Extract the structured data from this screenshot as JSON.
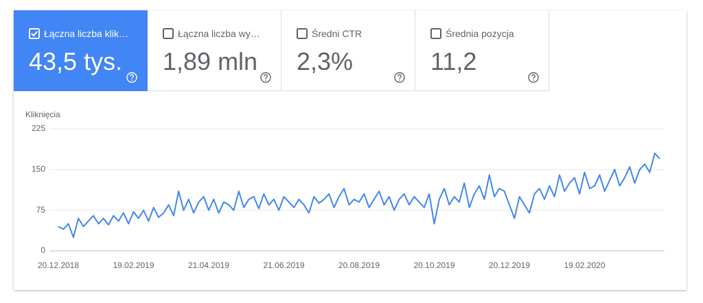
{
  "cards": [
    {
      "label": "Łączna liczba klik…",
      "value": "43,5 tys.",
      "selected": true
    },
    {
      "label": "Łączna liczba wy…",
      "value": "1,89 mln",
      "selected": false
    },
    {
      "label": "Średni CTR",
      "value": "2,3%",
      "selected": false
    },
    {
      "label": "Średnia pozycja",
      "value": "11,2",
      "selected": false
    }
  ],
  "chart_data": {
    "type": "line",
    "y_label": "Kliknięcia",
    "color": "#4285f4",
    "grid": true,
    "ylim": [
      0,
      225
    ],
    "yticks": [
      0,
      75,
      150,
      225
    ],
    "categories": [
      "20.12.2018",
      null,
      null,
      null,
      null,
      null,
      null,
      null,
      null,
      null,
      null,
      null,
      null,
      null,
      null,
      "19.02.2019",
      null,
      null,
      null,
      null,
      null,
      null,
      null,
      null,
      null,
      null,
      null,
      null,
      null,
      null,
      "21.04.2019",
      null,
      null,
      null,
      null,
      null,
      null,
      null,
      null,
      null,
      null,
      null,
      null,
      null,
      null,
      "21.06.2019",
      null,
      null,
      null,
      null,
      null,
      null,
      null,
      null,
      null,
      null,
      null,
      null,
      null,
      null,
      "20.08.2019",
      null,
      null,
      null,
      null,
      null,
      null,
      null,
      null,
      null,
      null,
      null,
      null,
      null,
      null,
      "20.10.2019",
      null,
      null,
      null,
      null,
      null,
      null,
      null,
      null,
      null,
      null,
      null,
      null,
      null,
      null,
      "20.12.2019",
      null,
      null,
      null,
      null,
      null,
      null,
      null,
      null,
      null,
      null,
      null,
      null,
      null,
      null,
      "19.02.2020",
      null,
      null,
      null,
      null,
      null,
      null,
      null,
      null,
      null,
      null,
      null,
      null,
      null,
      null,
      null
    ],
    "values": [
      45,
      40,
      50,
      25,
      60,
      45,
      55,
      65,
      50,
      60,
      48,
      65,
      55,
      70,
      50,
      72,
      60,
      75,
      55,
      80,
      62,
      70,
      85,
      65,
      110,
      75,
      95,
      70,
      90,
      100,
      75,
      95,
      70,
      90,
      85,
      75,
      110,
      80,
      95,
      100,
      78,
      105,
      85,
      95,
      75,
      100,
      90,
      80,
      95,
      85,
      70,
      100,
      88,
      95,
      105,
      80,
      100,
      115,
      85,
      95,
      90,
      105,
      80,
      95,
      110,
      85,
      100,
      75,
      95,
      105,
      85,
      100,
      90,
      80,
      105,
      50,
      95,
      115,
      85,
      100,
      90,
      125,
      80,
      105,
      120,
      95,
      140,
      100,
      115,
      110,
      85,
      60,
      100,
      85,
      70,
      105,
      115,
      95,
      120,
      100,
      140,
      110,
      125,
      135,
      105,
      145,
      115,
      120,
      140,
      110,
      130,
      150,
      120,
      135,
      155,
      125,
      150,
      160,
      145,
      180,
      170
    ]
  }
}
